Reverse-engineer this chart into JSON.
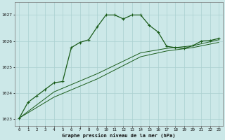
{
  "title": "Graphe pression niveau de la mer (hPa)",
  "background_color": "#cce8e8",
  "grid_color": "#aad0d0",
  "line_color": "#1a5c1a",
  "xlim": [
    -0.5,
    23.5
  ],
  "ylim": [
    1022.75,
    1027.5
  ],
  "yticks": [
    1023,
    1024,
    1025,
    1026,
    1027
  ],
  "xticks": [
    0,
    1,
    2,
    3,
    4,
    5,
    6,
    7,
    8,
    9,
    10,
    11,
    12,
    13,
    14,
    15,
    16,
    17,
    18,
    19,
    20,
    21,
    22,
    23
  ],
  "main_x": [
    0,
    1,
    2,
    3,
    4,
    5,
    6,
    7,
    8,
    9,
    10,
    11,
    12,
    13,
    14,
    15,
    16,
    17,
    18,
    19,
    20,
    21,
    22,
    23
  ],
  "main_y": [
    1023.05,
    1023.65,
    1023.9,
    1024.15,
    1024.4,
    1024.45,
    1025.75,
    1025.95,
    1026.05,
    1026.55,
    1027.0,
    1027.0,
    1026.85,
    1027.0,
    1027.0,
    1026.6,
    1026.35,
    1025.8,
    1025.75,
    1025.72,
    1025.82,
    1026.0,
    1026.02,
    1026.1
  ],
  "line2_x": [
    0,
    4,
    9,
    14,
    17,
    20,
    23
  ],
  "line2_y": [
    1023.05,
    1024.05,
    1024.75,
    1025.55,
    1025.72,
    1025.82,
    1026.05
  ],
  "line3_x": [
    0,
    4,
    9,
    14,
    17,
    20,
    23
  ],
  "line3_y": [
    1023.05,
    1023.85,
    1024.55,
    1025.4,
    1025.62,
    1025.75,
    1025.95
  ]
}
